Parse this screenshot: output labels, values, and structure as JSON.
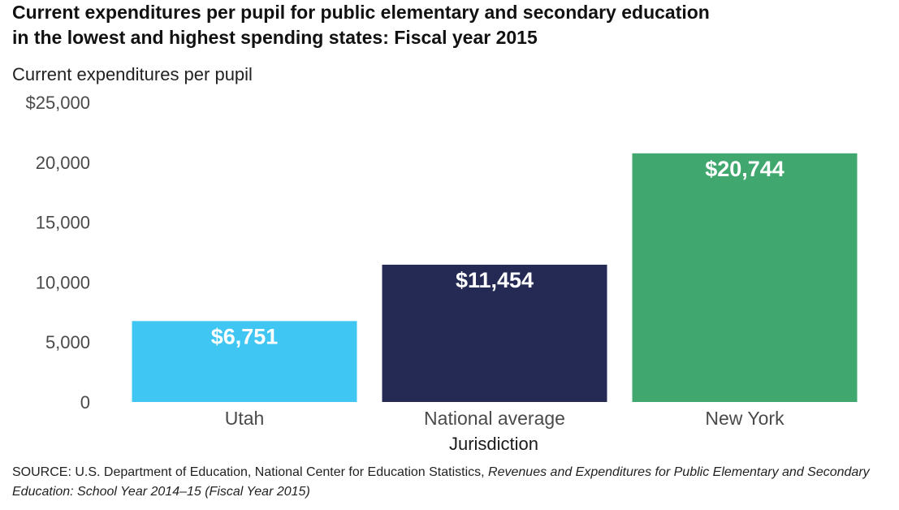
{
  "title_line1": "Current expenditures per pupil for public elementary and secondary education",
  "title_line2": "in the lowest and highest spending states: Fiscal year 2015",
  "source_prefix": "SOURCE: U.S. Department of Education, National Center for Education Statistics,",
  "source_citation": "Revenues and Expenditures for Public Elementary and Secondary Education: School Year 2014–15 (Fiscal Year 2015)",
  "colors": {
    "Utah": "#3fc6f3",
    "National average": "#252a55",
    "New York": "#40a86e"
  },
  "chart_data": {
    "type": "bar",
    "categories": [
      "Utah",
      "National average",
      "New York"
    ],
    "values": [
      6751,
      11454,
      20744
    ],
    "value_labels": [
      "$6,751",
      "$11,454",
      "$20,744"
    ],
    "ylabel": "Current expenditures per pupil",
    "xlabel": "Jurisdiction",
    "ylim": [
      0,
      25000
    ],
    "yticks": [
      0,
      5000,
      10000,
      15000,
      20000,
      25000
    ],
    "ytick_labels": [
      "0",
      "5,000",
      "10,000",
      "15,000",
      "20,000",
      "$25,000"
    ],
    "grid": false,
    "legend": "none"
  }
}
